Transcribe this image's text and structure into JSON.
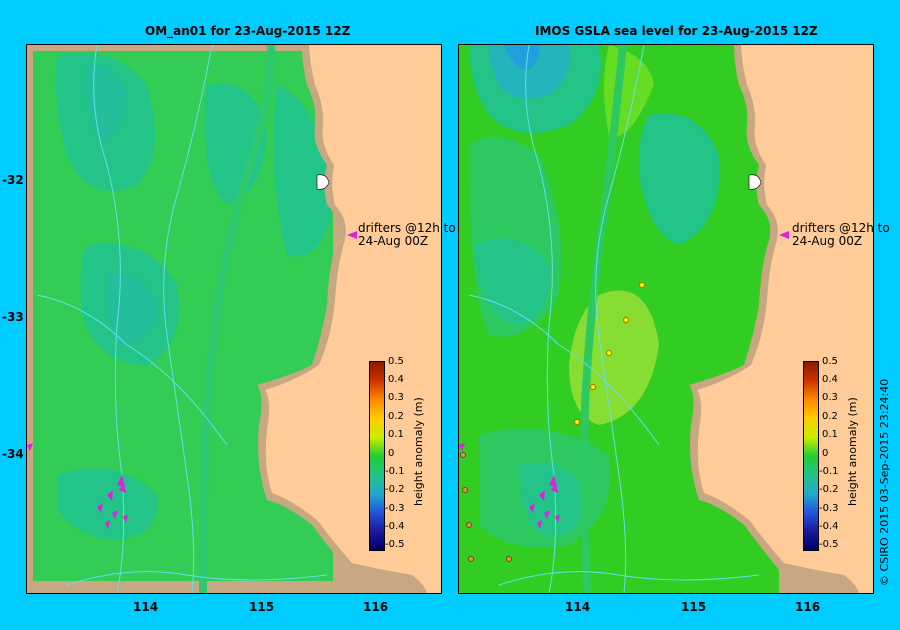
{
  "panels": [
    {
      "title": "OM_an01  for 23-Aug-2015 12Z",
      "drifter_note": [
        "drifters @12h to",
        "24-Aug 00Z"
      ]
    },
    {
      "title": "IMOS GSLA sea level  for 23-Aug-2015 12Z",
      "drifter_note": [
        "drifters @12h to",
        "24-Aug 00Z"
      ]
    }
  ],
  "axes": {
    "lon_ticks": [
      "114",
      "115",
      "116"
    ],
    "lat_ticks": [
      "-32",
      "-33",
      "-34"
    ]
  },
  "colorbar": {
    "label": "height anomaly (m)",
    "ticks": [
      "0.5",
      "0.4",
      "0.3",
      "0.2",
      "0.1",
      "0",
      "-0.1",
      "-0.2",
      "-0.3",
      "-0.4",
      "-0.5"
    ],
    "range": [
      -0.5,
      0.5
    ]
  },
  "credit": "© CSIRO 2015   03-Sep-2015 23:24:40",
  "colors": {
    "land": "#ffcc99",
    "coast_shelf": "#c8a882",
    "drifter": "#e020e0",
    "contour": "#66ddee",
    "background": "#00ccff"
  }
}
